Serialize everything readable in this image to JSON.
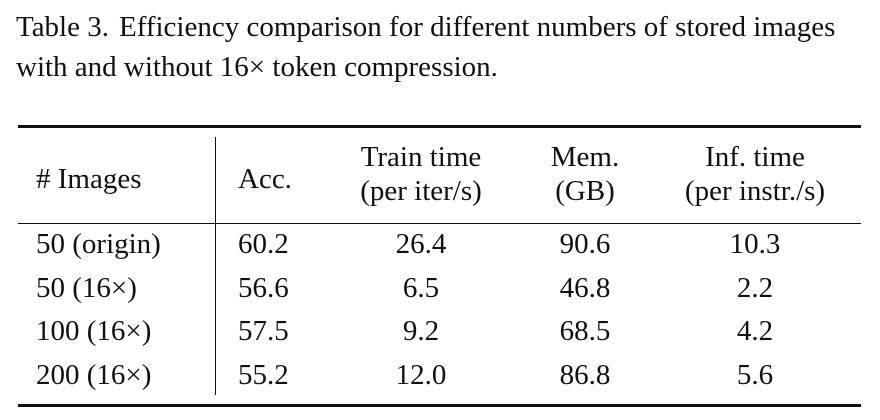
{
  "caption": {
    "label": "Table 3.",
    "text": "Efficiency comparison for different numbers of stored images with and without 16× token compression."
  },
  "table": {
    "headers": {
      "images": "# Images",
      "acc": "Acc.",
      "train_line1": "Train time",
      "train_line2": "(per iter/s)",
      "mem_line1": "Mem.",
      "mem_line2": "(GB)",
      "inf_line1": "Inf. time",
      "inf_line2": "(per instr./s)"
    },
    "rows": [
      {
        "images": "50 (origin)",
        "acc": "60.2",
        "train": "26.4",
        "mem": "90.6",
        "inf": "10.3"
      },
      {
        "images": "50 (16×)",
        "acc": "56.6",
        "train": "6.5",
        "mem": "46.8",
        "inf": "2.2"
      },
      {
        "images": "100 (16×)",
        "acc": "57.5",
        "train": "9.2",
        "mem": "68.5",
        "inf": "4.2"
      },
      {
        "images": "200 (16×)",
        "acc": "55.2",
        "train": "12.0",
        "mem": "86.8",
        "inf": "5.6"
      }
    ]
  }
}
